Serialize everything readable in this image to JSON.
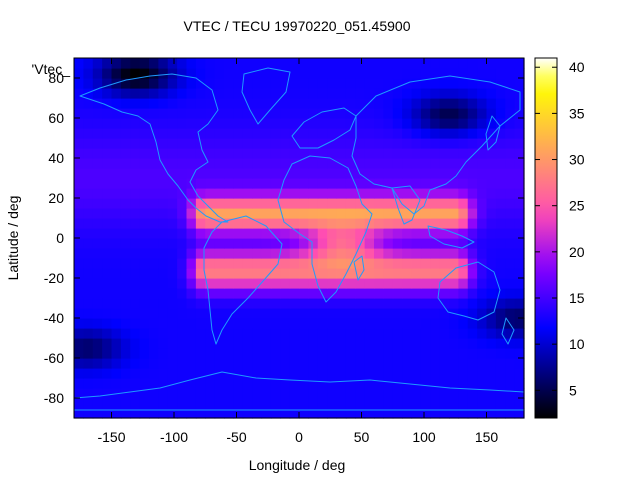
{
  "chart_data": {
    "type": "heatmap",
    "title": "VTEC / TECU 19970220_051.45900",
    "xlabel": "Longitude / deg",
    "ylabel": "Latitude / deg",
    "series_label": "'Vtec_",
    "xlim": [
      -180,
      180
    ],
    "ylim": [
      -90,
      90
    ],
    "x_ticks": [
      -150,
      -100,
      -50,
      0,
      50,
      100,
      150
    ],
    "y_ticks": [
      -80,
      -60,
      -40,
      -20,
      0,
      20,
      40,
      60,
      80
    ],
    "colorbar": {
      "range": [
        2,
        41
      ],
      "ticks": [
        5,
        10,
        15,
        20,
        25,
        30,
        35,
        40
      ]
    },
    "grid": {
      "dlon": 7.5,
      "dlat": 5
    },
    "features": {
      "background": 12.5,
      "peak": {
        "lon": 35,
        "lat": -3,
        "value": 40
      },
      "crest_north": {
        "lat": 12,
        "value": 29
      },
      "crest_south": {
        "lat": -16,
        "value": 28
      },
      "lon_window": [
        -75,
        125
      ],
      "dark_regions": [
        {
          "lon": -130,
          "lat": 82,
          "value": 2
        },
        {
          "lon": 120,
          "lat": 62,
          "value": 5
        },
        {
          "lon": -170,
          "lat": -55,
          "value": 6
        },
        {
          "lon": 175,
          "lat": -40,
          "value": 6
        }
      ]
    }
  }
}
